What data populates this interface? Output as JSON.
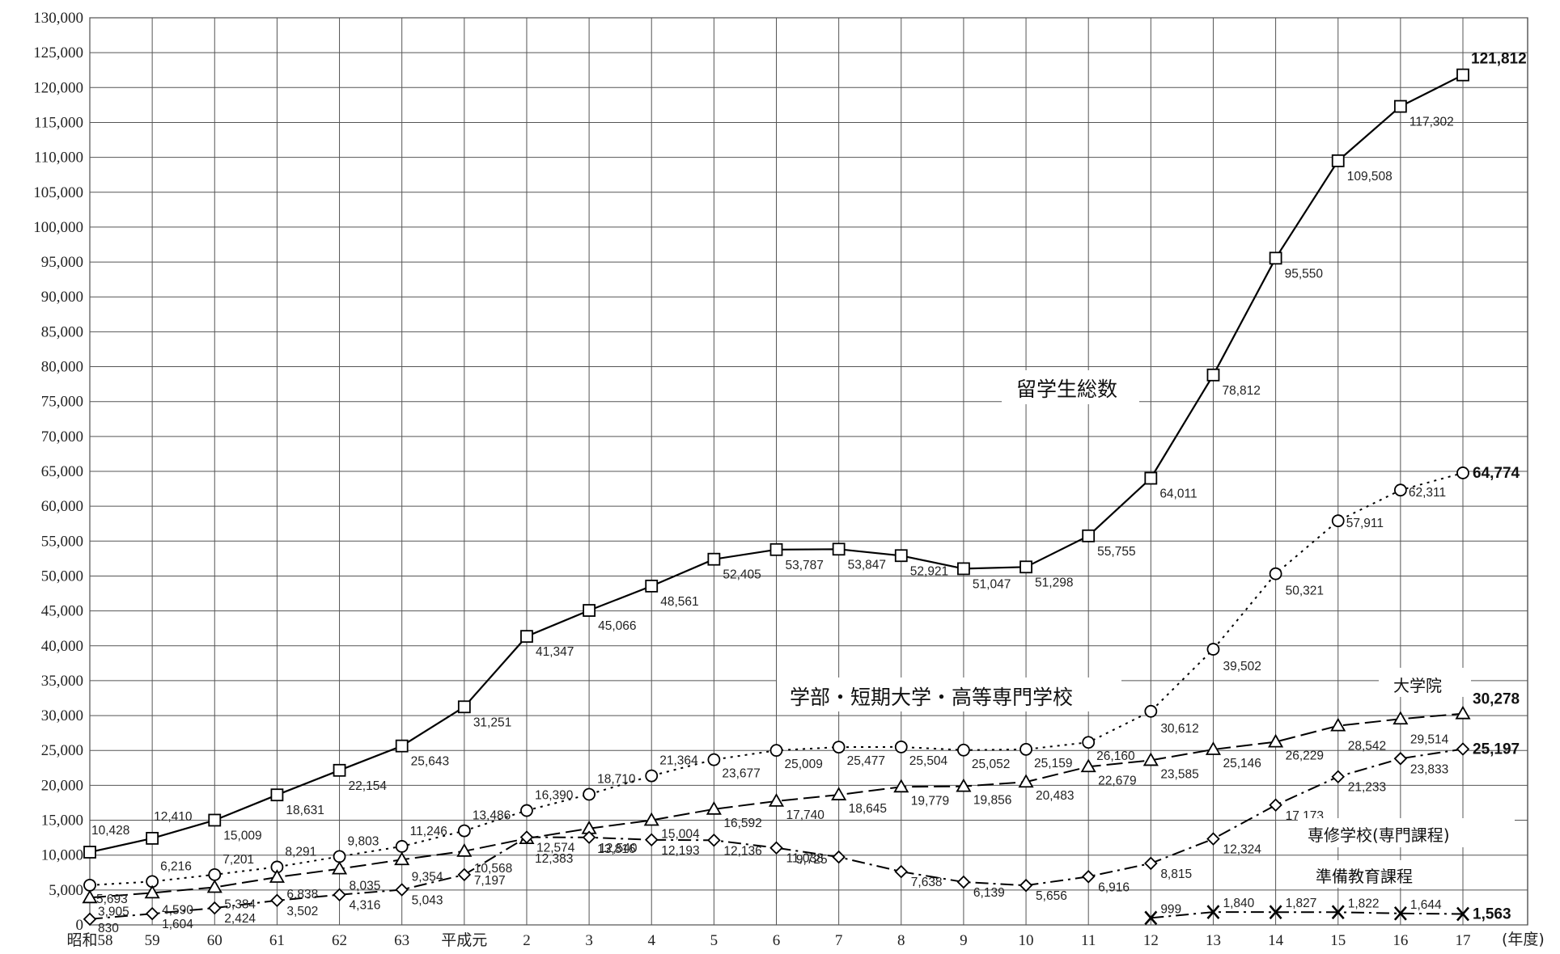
{
  "chart_data": {
    "type": "line",
    "x_unit_label": "(年度)",
    "categories": [
      "昭和58",
      "59",
      "60",
      "61",
      "62",
      "63",
      "平成元",
      "2",
      "3",
      "4",
      "5",
      "6",
      "7",
      "8",
      "9",
      "10",
      "11",
      "12",
      "13",
      "14",
      "15",
      "16",
      "17"
    ],
    "ylim": [
      0,
      130000
    ],
    "y_ticks": [
      "0",
      "5,000",
      "10,000",
      "15,000",
      "20,000",
      "25,000",
      "30,000",
      "35,000",
      "40,000",
      "45,000",
      "50,000",
      "55,000",
      "60,000",
      "65,000",
      "70,000",
      "75,000",
      "80,000",
      "85,000",
      "90,000",
      "95,000",
      "100,000",
      "105,000",
      "110,000",
      "115,000",
      "120,000",
      "125,000",
      "130,000"
    ],
    "grid": true,
    "series": [
      {
        "name": "留学生総数",
        "marker": "square",
        "line": "solid",
        "values": [
          10428,
          12410,
          15009,
          18631,
          22154,
          25643,
          31251,
          41347,
          45066,
          48561,
          52405,
          53787,
          53847,
          52921,
          51047,
          51298,
          55755,
          64011,
          78812,
          95550,
          109508,
          117302,
          121812
        ],
        "labels": [
          "10,428",
          "12,410",
          "15,009",
          "18,631",
          "22,154",
          "25,643",
          "31,251",
          "41,347",
          "45,066",
          "48,561",
          "52,405",
          "53,787",
          "53,847",
          "52,921",
          "51,047",
          "51,298",
          "55,755",
          "64,011",
          "78,812",
          "95,550",
          "109,508",
          "117,302",
          "121,812"
        ]
      },
      {
        "name": "学部・短期大学・高等専門学校",
        "marker": "circle",
        "line": "dotted",
        "values": [
          5693,
          6216,
          7201,
          8291,
          9803,
          11246,
          13486,
          16390,
          18710,
          21364,
          23677,
          25009,
          25477,
          25504,
          25052,
          25159,
          26160,
          30612,
          39502,
          50321,
          57911,
          62311,
          64774
        ],
        "labels": [
          "5,693",
          "6,216",
          "7,201",
          "8,291",
          "9,803",
          "11,246",
          "13,486",
          "16,390",
          "18,710",
          "21,364",
          "23,677",
          "25,009",
          "25,477",
          "25,504",
          "25,052",
          "25,159",
          "26,160",
          "30,612",
          "39,502",
          "50,321",
          "57,911",
          "62,311",
          "64,774"
        ]
      },
      {
        "name": "大学院",
        "marker": "triangle",
        "line": "dashed",
        "values": [
          3905,
          4590,
          5384,
          6838,
          8035,
          9354,
          10568,
          12383,
          13816,
          15004,
          16592,
          17740,
          18645,
          19779,
          19856,
          20483,
          22679,
          23585,
          25146,
          26229,
          28542,
          29514,
          30278
        ],
        "labels": [
          "3,905",
          "4,590",
          "5,384",
          "6,838",
          "8,035",
          "9,354",
          "10,568",
          "12,383",
          "13,816",
          "15,004",
          "16,592",
          "17,740",
          "18,645",
          "19,779",
          "19,856",
          "20,483",
          "22,679",
          "23,585",
          "25,146",
          "26,229",
          "28,542",
          "29,514",
          "30,278"
        ]
      },
      {
        "name": "専修学校(専門課程)",
        "marker": "diamond",
        "line": "dashdot",
        "values": [
          830,
          1604,
          2424,
          3502,
          4316,
          5043,
          7197,
          12574,
          12540,
          12193,
          12136,
          11038,
          9725,
          7638,
          6139,
          5656,
          6916,
          8815,
          12324,
          17173,
          21233,
          23833,
          25197
        ],
        "labels": [
          "830",
          "1,604",
          "2,424",
          "3,502",
          "4,316",
          "5,043",
          "7,197",
          "12,574",
          "12,540",
          "12,193",
          "12,136",
          "11,038",
          "9,725",
          "7,638",
          "6,139",
          "5,656",
          "6,916",
          "8,815",
          "12,324",
          "17,173",
          "21,233",
          "23,833",
          "25,197"
        ]
      },
      {
        "name": "準備教育課程",
        "marker": "x",
        "line": "dashdot",
        "values": [
          null,
          null,
          null,
          null,
          null,
          null,
          null,
          null,
          null,
          null,
          null,
          null,
          null,
          null,
          null,
          null,
          null,
          999,
          1840,
          1827,
          1822,
          1644,
          1563
        ],
        "labels": [
          null,
          null,
          null,
          null,
          null,
          null,
          null,
          null,
          null,
          null,
          null,
          null,
          null,
          null,
          null,
          null,
          null,
          "999",
          "1,840",
          "1,827",
          "1,822",
          "1,644",
          "1,563"
        ]
      }
    ]
  }
}
